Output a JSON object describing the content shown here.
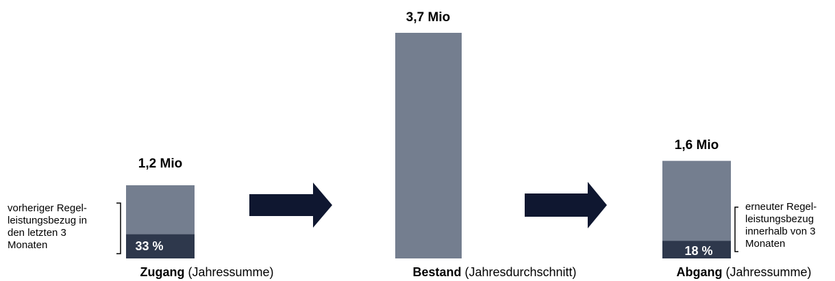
{
  "chart_data": {
    "type": "bar",
    "title": "",
    "categories": [
      {
        "name": "Zugang",
        "suffix": " (Jahressumme)"
      },
      {
        "name": "Bestand",
        "suffix": " (Jahresdurchschnitt)"
      },
      {
        "name": "Abgang",
        "suffix": " (Jahressumme)"
      }
    ],
    "values": [
      1.2,
      3.7,
      1.6
    ],
    "value_labels": [
      "1,2 Mio",
      "3,7 Mio",
      "1,6 Mio"
    ],
    "unit": "Mio",
    "segments": [
      {
        "category": "Zugang",
        "share": 0.33,
        "label": "33 %"
      },
      {
        "category": "Abgang",
        "share": 0.18,
        "label": "18 %"
      }
    ],
    "colors": {
      "bar": "#747e8f",
      "segment": "#2e384c",
      "arrow": "#0f1730"
    }
  },
  "annotations": {
    "left": [
      "vorheriger Regel-",
      "leistungsbezug in",
      "den letzten 3",
      "Monaten"
    ],
    "right": [
      "erneuter Regel-",
      "leistungsbezug",
      "innerhalb von 3",
      "Monaten"
    ]
  }
}
